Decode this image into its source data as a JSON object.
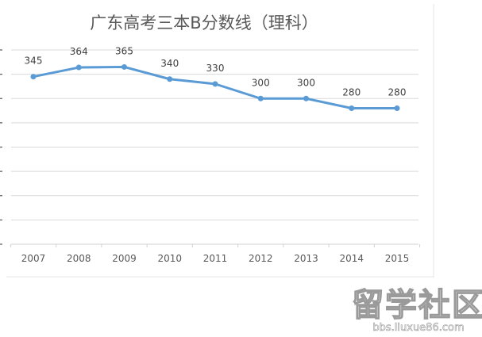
{
  "chart_data": {
    "type": "line",
    "title": "广东高考三本B分数线（理科）",
    "categories": [
      "2007",
      "2008",
      "2009",
      "2010",
      "2011",
      "2012",
      "2013",
      "2014",
      "2015"
    ],
    "series": [
      {
        "values": [
          345,
          364,
          365,
          340,
          330,
          300,
          300,
          280,
          280
        ]
      }
    ],
    "data_labels": [
      "345",
      "364",
      "365",
      "340",
      "330",
      "300",
      "300",
      "280",
      "280"
    ],
    "ylim": [
      0,
      400
    ],
    "gridlines": 9,
    "grid": true,
    "line_color": "#5b9bd5",
    "grid_color": "#d9d9d9"
  },
  "watermark": {
    "text": "留学社区",
    "url": "bbs.liuxue86.com"
  }
}
